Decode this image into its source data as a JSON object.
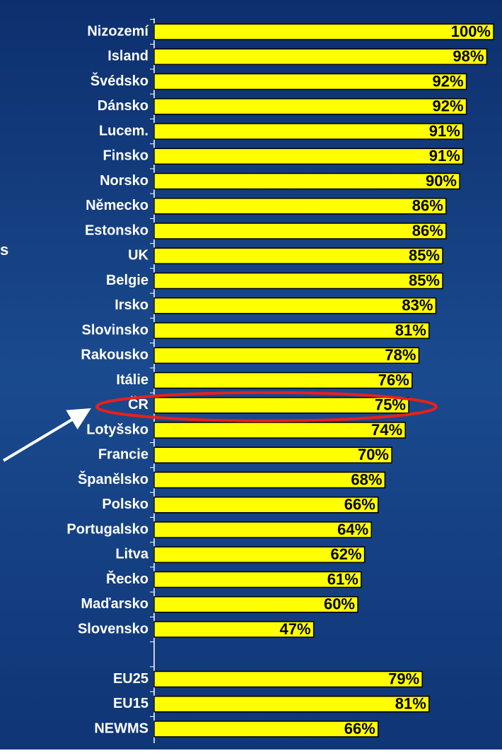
{
  "chart_data": {
    "type": "bar",
    "orientation": "horizontal",
    "categories": [
      "Nizozemí",
      "Island",
      "Švédsko",
      "Dánsko",
      "Lucem.",
      "Finsko",
      "Norsko",
      "Německo",
      "Estonsko",
      "UK",
      "Belgie",
      "Irsko",
      "Slovinsko",
      "Rakousko",
      "Itálie",
      "ČR",
      "Lotyšsko",
      "Francie",
      "Španělsko",
      "Polsko",
      "Portugalsko",
      "Litva",
      "Řecko",
      "Maďarsko",
      "Slovensko",
      null,
      "EU25",
      "EU15",
      "NEWMS"
    ],
    "values": [
      100,
      98,
      92,
      92,
      91,
      91,
      90,
      86,
      86,
      85,
      85,
      83,
      81,
      78,
      76,
      75,
      74,
      70,
      68,
      66,
      64,
      62,
      61,
      60,
      47,
      null,
      79,
      81,
      66
    ],
    "value_labels": [
      "100%",
      "98%",
      "92%",
      "92%",
      "91%",
      "91%",
      "90%",
      "86%",
      "86%",
      "85%",
      "85%",
      "83%",
      "81%",
      "78%",
      "76%",
      "75%",
      "74%",
      "70%",
      "68%",
      "66%",
      "64%",
      "62%",
      "61%",
      "60%",
      "47%",
      null,
      "79%",
      "81%",
      "66%"
    ],
    "color": "#ffff00",
    "xlim": [
      0,
      100
    ],
    "highlight": 15,
    "side_text": "s"
  }
}
